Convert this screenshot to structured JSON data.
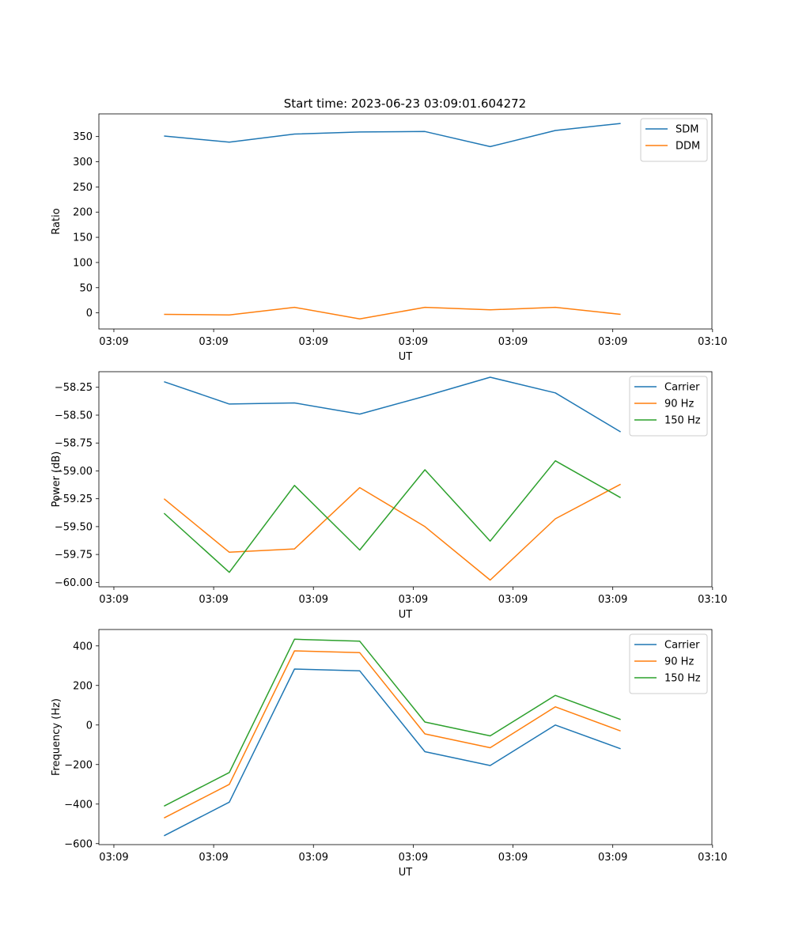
{
  "title": "Start time: 2023-06-23 03:09:01.604272",
  "chart_data": [
    {
      "type": "line",
      "xlabel": "UT",
      "ylabel": "Ratio",
      "x": [
        1,
        2,
        3,
        4,
        5,
        6,
        7,
        8
      ],
      "xticks": [
        {
          "pos": 0.23,
          "label": "03:09"
        },
        {
          "pos": 1.76,
          "label": "03:09"
        },
        {
          "pos": 3.29,
          "label": "03:09"
        },
        {
          "pos": 4.82,
          "label": "03:09"
        },
        {
          "pos": 6.35,
          "label": "03:09"
        },
        {
          "pos": 7.88,
          "label": "03:09"
        },
        {
          "pos": 9.41,
          "label": "03:10"
        }
      ],
      "xlim": [
        0,
        9.4
      ],
      "ylim": [
        -32,
        395
      ],
      "yticks": [
        0,
        50,
        100,
        150,
        200,
        250,
        300,
        350
      ],
      "ytick_labels": [
        "0",
        "50",
        "100",
        "150",
        "200",
        "250",
        "300",
        "350"
      ],
      "legend": "top-right",
      "series": [
        {
          "name": "SDM",
          "color": "#1f77b4",
          "values": [
            351,
            339,
            355,
            359,
            360,
            330,
            362,
            376
          ]
        },
        {
          "name": "DDM",
          "color": "#ff7f0e",
          "values": [
            -3,
            -4,
            11,
            -12,
            11,
            6,
            11,
            -3
          ]
        }
      ]
    },
    {
      "type": "line",
      "xlabel": "UT",
      "ylabel": "Power (dB)",
      "x": [
        1,
        2,
        3,
        4,
        5,
        6,
        7,
        8
      ],
      "xticks": [
        {
          "pos": 0.23,
          "label": "03:09"
        },
        {
          "pos": 1.76,
          "label": "03:09"
        },
        {
          "pos": 3.29,
          "label": "03:09"
        },
        {
          "pos": 4.82,
          "label": "03:09"
        },
        {
          "pos": 6.35,
          "label": "03:09"
        },
        {
          "pos": 7.88,
          "label": "03:09"
        },
        {
          "pos": 9.41,
          "label": "03:10"
        }
      ],
      "xlim": [
        0,
        9.4
      ],
      "ylim": [
        -60.04,
        -58.11
      ],
      "yticks": [
        -60.0,
        -59.75,
        -59.5,
        -59.25,
        -59.0,
        -58.75,
        -58.5,
        -58.25
      ],
      "ytick_labels": [
        "−60.00",
        "−59.75",
        "−59.50",
        "−59.25",
        "−59.00",
        "−58.75",
        "−58.50",
        "−58.25"
      ],
      "legend": "top-right",
      "series": [
        {
          "name": "Carrier",
          "color": "#1f77b4",
          "values": [
            -58.2,
            -58.4,
            -58.39,
            -58.49,
            -58.33,
            -58.16,
            -58.3,
            -58.65
          ]
        },
        {
          "name": "90 Hz",
          "color": "#ff7f0e",
          "values": [
            -59.25,
            -59.73,
            -59.7,
            -59.15,
            -59.5,
            -59.98,
            -59.43,
            -59.12
          ]
        },
        {
          "name": "150 Hz",
          "color": "#2ca02c",
          "values": [
            -59.38,
            -59.91,
            -59.13,
            -59.71,
            -58.99,
            -59.63,
            -58.91,
            -59.24
          ]
        }
      ]
    },
    {
      "type": "line",
      "xlabel": "UT",
      "ylabel": "Frequency (Hz)",
      "x": [
        1,
        2,
        3,
        4,
        5,
        6,
        7,
        8
      ],
      "xticks": [
        {
          "pos": 0.23,
          "label": "03:09"
        },
        {
          "pos": 1.76,
          "label": "03:09"
        },
        {
          "pos": 3.29,
          "label": "03:09"
        },
        {
          "pos": 4.82,
          "label": "03:09"
        },
        {
          "pos": 6.35,
          "label": "03:09"
        },
        {
          "pos": 7.88,
          "label": "03:09"
        },
        {
          "pos": 9.41,
          "label": "03:10"
        }
      ],
      "xlim": [
        0,
        9.4
      ],
      "ylim": [
        -605,
        483
      ],
      "yticks": [
        -600,
        -400,
        -200,
        0,
        200,
        400
      ],
      "ytick_labels": [
        "−600",
        "−400",
        "−200",
        "0",
        "200",
        "400"
      ],
      "legend": "top-right",
      "series": [
        {
          "name": "Carrier",
          "color": "#1f77b4",
          "values": [
            -560,
            -390,
            283,
            274,
            -135,
            -205,
            0,
            -120
          ]
        },
        {
          "name": "90 Hz",
          "color": "#ff7f0e",
          "values": [
            -470,
            -300,
            375,
            366,
            -45,
            -115,
            92,
            -30
          ]
        },
        {
          "name": "150 Hz",
          "color": "#2ca02c",
          "values": [
            -410,
            -240,
            434,
            424,
            15,
            -55,
            150,
            28
          ]
        }
      ]
    }
  ]
}
